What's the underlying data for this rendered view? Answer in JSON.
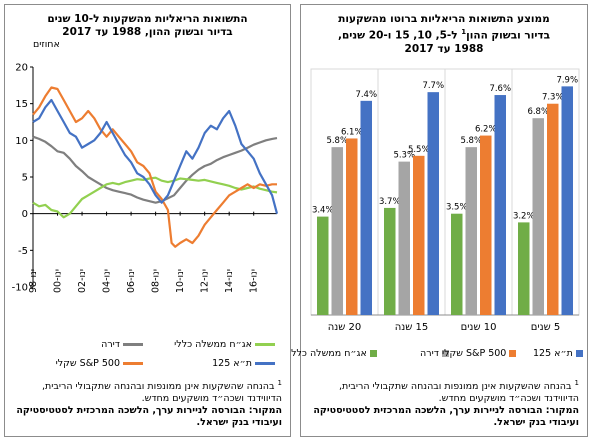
{
  "right_panel": {
    "title_lines": [
      "ממוצע התשואות הריאליות ברוטו מהשקעות",
      "בדיור ובשוק ההון",
      "ל-5, 10, 15 ו-20 שנים,",
      "1988 עד 2017"
    ],
    "title_sup": "1",
    "footnote": {
      "marker": "1",
      "text": "בהנחה שהשקעות אינן ממונפות ובהנחה שתקבולי הריבית, הדיווידנד ושכה״ד מושקעים מחדש."
    },
    "source": "המקור: הבורסה לניירות ערך, הלשכה המרכזית לסטטיסטיקה ועיבודי בנק ישראל."
  },
  "left_panel": {
    "title_lines": [
      "התשואות הריאליות מהשקעות ל-10 שנים",
      "בדיור ובשוק ההון, 1988 עד 2017"
    ],
    "y_unit": "אחוזים",
    "footnote": {
      "marker": "1",
      "text": "בהנחה שהשקעות אינן ממונפות ובהנחה שתקבולי הריבית, הדיווידנד ושכה״ד מושקעים מחדש."
    },
    "source": "המקור: הבורסה לניירות ערך, הלשכה המרכזית לסטטיסטיקה ועיבודי בנק ישראל."
  },
  "chart_data": [
    {
      "type": "bar",
      "categories": [
        "20 שנה",
        "15 שנה",
        "10 שנים",
        "5 שנים"
      ],
      "series": [
        {
          "name": "אג״ח ממשלה כללי",
          "color": "#70ad47",
          "values": [
            3.4,
            3.7,
            3.5,
            3.2
          ],
          "labels": [
            "3.4%",
            "3.7%",
            "3.5%",
            "3.2%"
          ]
        },
        {
          "name": "דירה",
          "color": "#a5a5a5",
          "values": [
            5.8,
            5.3,
            5.8,
            6.8
          ],
          "labels": [
            "5.8%",
            "5.3%",
            "5.8%",
            "6.8%"
          ]
        },
        {
          "name": "S&P 500 שקלי",
          "color": "#ed7d31",
          "values": [
            6.1,
            5.5,
            6.2,
            7.3
          ],
          "labels": [
            "6.1%",
            "5.5%",
            "6.2%",
            "7.3%"
          ]
        },
        {
          "name": "ת״א 125",
          "color": "#4472c4",
          "values": [
            7.4,
            7.7,
            7.6,
            7.9
          ],
          "labels": [
            "7.4%",
            "7.7%",
            "7.6%",
            "7.9%"
          ]
        }
      ],
      "ylim": [
        0,
        8.5
      ],
      "grid": true,
      "legend": "bottom"
    },
    {
      "type": "line",
      "x_tick_labels": [
        "ינו-98",
        "ינו-00",
        "ינו-02",
        "ינו-04",
        "ינו-06",
        "ינו-08",
        "ינו-10",
        "ינו-12",
        "ינו-14",
        "ינו-16"
      ],
      "x_range": [
        1998.0,
        2017.9
      ],
      "ylim": [
        -10,
        20
      ],
      "yticks": [
        -10,
        -5,
        0,
        5,
        10,
        15,
        20
      ],
      "grid": false,
      "legend": "bottom",
      "series": [
        {
          "name": "דירה",
          "color": "#7f7f7f",
          "x": [
            1998.0,
            1998.5,
            1999.0,
            1999.5,
            2000.0,
            2000.5,
            2001.0,
            2001.5,
            2002.0,
            2002.5,
            2003.0,
            2003.5,
            2004.0,
            2004.5,
            2005.0,
            2005.5,
            2006.0,
            2006.5,
            2007.0,
            2007.5,
            2008.0,
            2008.5,
            2009.0,
            2009.5,
            2010.0,
            2010.5,
            2011.0,
            2011.5,
            2012.0,
            2012.5,
            2013.0,
            2013.5,
            2014.0,
            2014.5,
            2015.0,
            2015.5,
            2016.0,
            2016.5,
            2017.0,
            2017.5,
            2017.9
          ],
          "y": [
            10.5,
            10.2,
            9.8,
            9.2,
            8.5,
            8.3,
            7.5,
            6.5,
            5.8,
            5.0,
            4.5,
            4.0,
            3.5,
            3.2,
            3.0,
            2.8,
            2.6,
            2.2,
            1.9,
            1.7,
            1.5,
            1.7,
            2.1,
            2.5,
            3.5,
            4.5,
            5.3,
            6.0,
            6.5,
            6.8,
            7.3,
            7.7,
            8.0,
            8.3,
            8.6,
            9.0,
            9.4,
            9.7,
            10.0,
            10.2,
            10.3
          ]
        },
        {
          "name": "אג״ח ממשלה כללי",
          "color": "#92d050",
          "x": [
            1998.0,
            1998.5,
            1999.0,
            1999.5,
            2000.0,
            2000.5,
            2001.0,
            2001.5,
            2002.0,
            2002.5,
            2003.0,
            2003.5,
            2004.0,
            2004.5,
            2005.0,
            2005.5,
            2006.0,
            2006.5,
            2007.0,
            2007.5,
            2008.0,
            2008.5,
            2009.0,
            2009.5,
            2010.0,
            2010.5,
            2011.0,
            2011.5,
            2012.0,
            2012.5,
            2013.0,
            2013.5,
            2014.0,
            2014.5,
            2015.0,
            2015.5,
            2016.0,
            2016.5,
            2017.0,
            2017.5,
            2017.9
          ],
          "y": [
            1.5,
            1.0,
            1.2,
            0.5,
            0.3,
            -0.5,
            0.0,
            1.0,
            2.0,
            2.5,
            3.0,
            3.5,
            4.0,
            4.2,
            4.0,
            4.3,
            4.5,
            4.7,
            4.6,
            4.8,
            4.9,
            4.5,
            4.3,
            4.5,
            4.8,
            4.7,
            4.6,
            4.5,
            4.6,
            4.4,
            4.2,
            4.0,
            3.8,
            3.5,
            3.3,
            3.5,
            3.7,
            3.4,
            3.2,
            3.0,
            2.9
          ]
        },
        {
          "name": "S&P 500 שקלי",
          "color": "#ed7d31",
          "x": [
            1998.0,
            1998.5,
            1999.0,
            1999.5,
            2000.0,
            2000.5,
            2001.0,
            2001.5,
            2002.0,
            2002.5,
            2003.0,
            2003.5,
            2004.0,
            2004.5,
            2005.0,
            2005.5,
            2006.0,
            2006.5,
            2007.0,
            2007.5,
            2008.0,
            2008.5,
            2009.0,
            2009.3,
            2009.6,
            2010.0,
            2010.5,
            2011.0,
            2011.5,
            2012.0,
            2012.5,
            2013.0,
            2013.5,
            2014.0,
            2014.5,
            2015.0,
            2015.5,
            2016.0,
            2016.5,
            2017.0,
            2017.5,
            2017.9
          ],
          "y": [
            13.5,
            14.5,
            16.0,
            17.2,
            17.0,
            15.5,
            14.0,
            12.5,
            13.0,
            14.0,
            13.0,
            11.5,
            10.5,
            11.5,
            10.5,
            9.5,
            8.5,
            7.0,
            6.5,
            5.5,
            3.0,
            2.0,
            0.5,
            -4.0,
            -4.5,
            -4.0,
            -3.5,
            -4.0,
            -3.0,
            -1.5,
            -0.5,
            0.5,
            1.5,
            2.5,
            3.0,
            3.5,
            4.0,
            3.5,
            4.0,
            3.8,
            4.0,
            4.0
          ]
        },
        {
          "name": "ת״א 125",
          "color": "#4472c4",
          "x": [
            1998.0,
            1998.5,
            1999.0,
            1999.5,
            2000.0,
            2000.5,
            2001.0,
            2001.5,
            2002.0,
            2002.5,
            2003.0,
            2003.5,
            2004.0,
            2004.5,
            2005.0,
            2005.5,
            2006.0,
            2006.5,
            2007.0,
            2007.5,
            2008.0,
            2008.5,
            2009.0,
            2009.5,
            2010.0,
            2010.5,
            2011.0,
            2011.5,
            2012.0,
            2012.5,
            2013.0,
            2013.5,
            2014.0,
            2014.5,
            2015.0,
            2015.5,
            2016.0,
            2016.5,
            2017.0,
            2017.5,
            2017.9
          ],
          "y": [
            12.5,
            13.0,
            14.5,
            15.5,
            14.0,
            12.5,
            11.0,
            10.5,
            9.0,
            9.5,
            10.0,
            11.0,
            12.5,
            11.0,
            9.5,
            8.0,
            7.0,
            5.5,
            5.0,
            4.0,
            2.5,
            1.5,
            2.5,
            4.5,
            6.5,
            8.5,
            7.5,
            9.0,
            11.0,
            12.0,
            11.5,
            13.0,
            14.0,
            12.0,
            9.5,
            8.5,
            7.5,
            5.5,
            4.0,
            2.5,
            0.0
          ]
        }
      ]
    }
  ]
}
